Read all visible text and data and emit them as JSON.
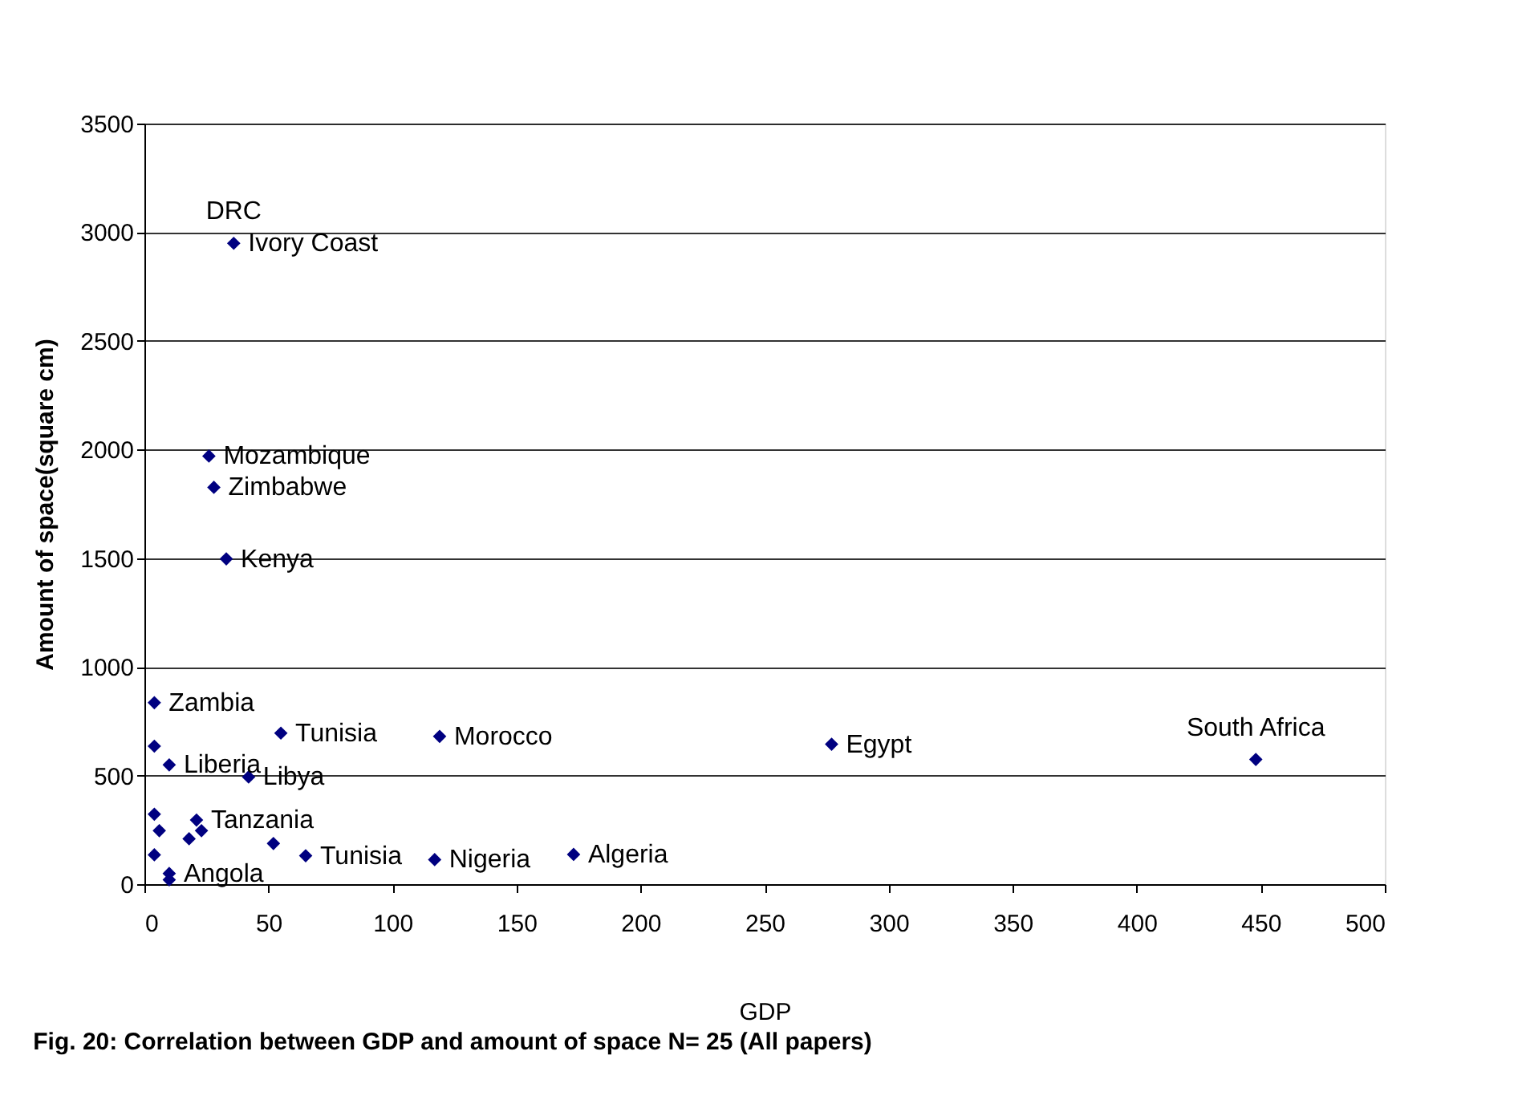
{
  "chart_data": {
    "type": "scatter",
    "xlabel": "GDP",
    "ylabel": "Amount of space(square cm)",
    "x": [
      36,
      26,
      28,
      33,
      4,
      4,
      10,
      42,
      55,
      119,
      4,
      6,
      21,
      23,
      18,
      52,
      65,
      4,
      10,
      10,
      117,
      277,
      448,
      173
    ],
    "series": [
      {
        "color": "#000080",
        "values": [
          2949,
          1970,
          1826,
          1497,
          835,
          635,
          549,
          493,
          695,
          680,
          322,
          246,
          295,
          246,
          209,
          187,
          131,
          135,
          49,
          20,
          113,
          644,
          574,
          137
        ]
      }
    ],
    "xlim": [
      0,
      500
    ],
    "xticks": [
      0,
      50,
      100,
      150,
      200,
      250,
      300,
      350,
      400,
      450,
      500
    ],
    "ylim": [
      0,
      3500
    ],
    "yticks": [
      0,
      500,
      1000,
      1500,
      2000,
      2500,
      3000,
      3500
    ],
    "grid": "y",
    "marker": "diamond",
    "annotations": [
      {
        "text": "DRC",
        "x": 36,
        "y": 2949
      },
      {
        "text": "Ivory Coast",
        "x": 36,
        "y": 2949
      },
      {
        "text": "Zimbabwe",
        "x": 28,
        "y": 1826
      },
      {
        "text": "Kenya",
        "x": 33,
        "y": 1497
      },
      {
        "text": "Mozambique",
        "x": 26,
        "y": 1970
      },
      {
        "text": "Liberia",
        "x": 10,
        "y": 549
      },
      {
        "text": "Zambia",
        "x": 4,
        "y": 835
      },
      {
        "text": "Tunisia",
        "x": 55,
        "y": 695
      },
      {
        "text": "Morocco",
        "x": 119,
        "y": 680
      },
      {
        "text": "Libya",
        "x": 42,
        "y": 493
      },
      {
        "text": "Tanzania",
        "x": 21,
        "y": 295
      },
      {
        "text": "Tunisia",
        "x": 65,
        "y": 131
      },
      {
        "text": "Nigeria",
        "x": 117,
        "y": 113
      },
      {
        "text": "Angola",
        "x": 10,
        "y": 49
      },
      {
        "text": "Algeria",
        "x": 173,
        "y": 137
      },
      {
        "text": "Egypt",
        "x": 277,
        "y": 644
      },
      {
        "text": "South Africa",
        "x": 448,
        "y": 574
      },
      "Fig. 20: Correlation between GDP and amount of space N= 25 (All papers)"
    ]
  }
}
